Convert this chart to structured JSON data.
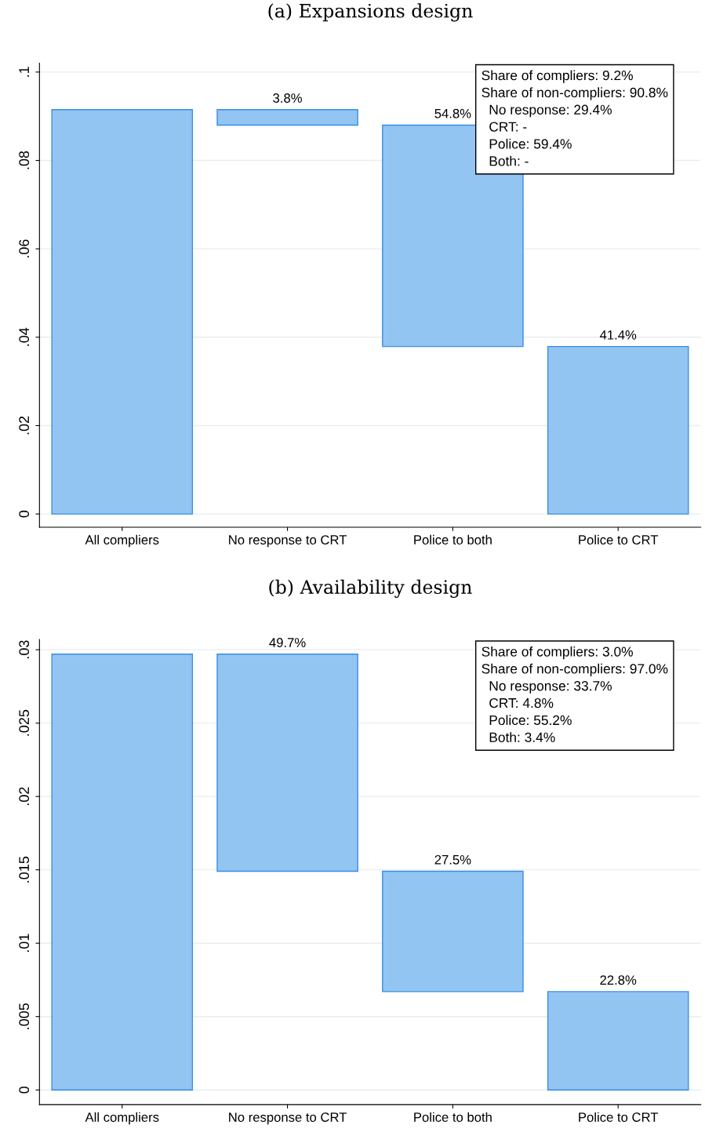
{
  "chart_data": [
    {
      "type": "bar",
      "title": "(a) Expansions design",
      "categories": [
        "All compliers",
        "No response to CRT",
        "Police to both",
        "Police to CRT"
      ],
      "values": [
        0.0915,
        0.0035,
        0.0501,
        0.0379
      ],
      "base": [
        0,
        0.088,
        0.0379,
        0
      ],
      "color": "#93c5f3",
      "ylim": [
        -0.003,
        0.102
      ],
      "yticks": [
        0,
        {
          "value": 0.02,
          "label": ".02"
        },
        {
          "value": 0.04,
          "label": ".04"
        },
        {
          "value": 0.06,
          "label": ".06"
        },
        {
          "value": 0.08,
          "label": ".08"
        },
        {
          "value": 0.1,
          "label": ".1"
        }
      ],
      "grid": "y",
      "annotations": [
        {
          "text": "3.8%",
          "x": "No response to CRT",
          "y": 0.0915
        },
        {
          "text": "54.8%",
          "x": "Police to both",
          "y": 0.088
        },
        {
          "text": "41.4%",
          "x": "Police to CRT",
          "y": 0.0379
        },
        "Share of compliers: 9.2%",
        "Share of non-compliers: 90.8%",
        "  No response: 29.4%",
        "  CRT: -",
        "  Police: 59.4%",
        "  Both: -"
      ]
    },
    {
      "type": "bar",
      "title": "(b) Availability design",
      "categories": [
        "All compliers",
        "No response to CRT",
        "Police to both",
        "Police to CRT"
      ],
      "values": [
        0.0297,
        0.0148,
        0.0082,
        0.0067
      ],
      "base": [
        0,
        0.0149,
        0.0067,
        0
      ],
      "color": "#93c5f3",
      "ylim": [
        -0.001,
        0.0307
      ],
      "yticks": [
        0,
        {
          "value": 0.005,
          "label": ".005"
        },
        {
          "value": 0.01,
          "label": ".01"
        },
        {
          "value": 0.015,
          "label": ".015"
        },
        {
          "value": 0.02,
          "label": ".02"
        },
        {
          "value": 0.025,
          "label": ".025"
        },
        {
          "value": 0.03,
          "label": ".03"
        }
      ],
      "grid": "y",
      "annotations": [
        {
          "text": "49.7%",
          "x": "No response to CRT",
          "y": 0.0297
        },
        {
          "text": "27.5%",
          "x": "Police to both",
          "y": 0.0149
        },
        {
          "text": "22.8%",
          "x": "Police to CRT",
          "y": 0.0067
        },
        "Share of compliers: 3.0%",
        "Share of non-compliers: 97.0%",
        "  No response: 33.7%",
        "  CRT: 4.8%",
        "  Police: 55.2%",
        "  Both: 3.4%"
      ]
    }
  ]
}
